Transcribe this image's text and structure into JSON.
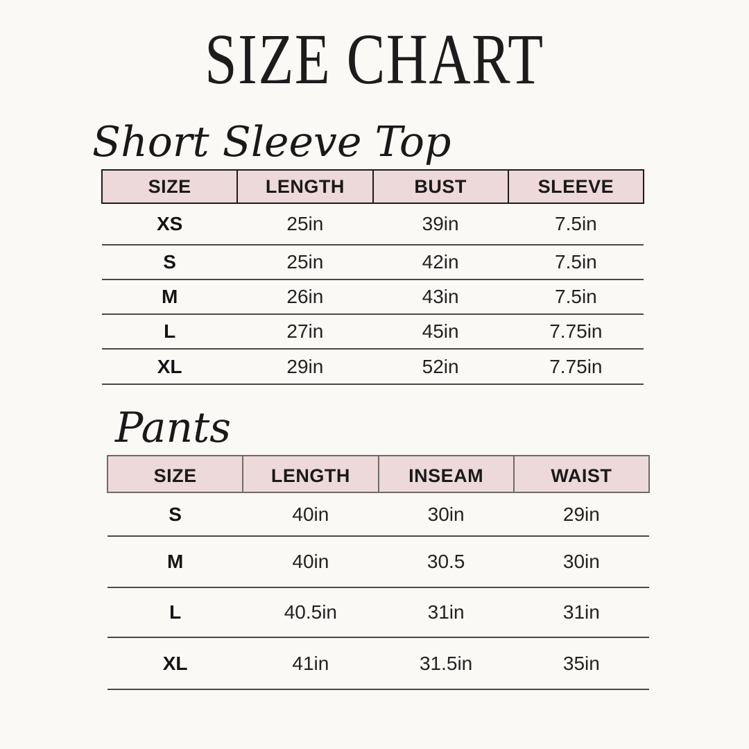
{
  "page": {
    "title": "SIZE CHART"
  },
  "colors": {
    "page_bg": "#faf9f6",
    "header_bg": "#edd9d9",
    "table1_border": "#1d1b1b",
    "table2_border": "#6e6a66",
    "row_line": "#4c4945",
    "text": "#1d1b1b"
  },
  "chart_data": [
    {
      "type": "table",
      "title": "Short Sleeve Top",
      "columns": [
        "SIZE",
        "LENGTH",
        "BUST",
        "SLEEVE"
      ],
      "rows": [
        [
          "XS",
          "25in",
          "39in",
          "7.5in"
        ],
        [
          "S",
          "25in",
          "42in",
          "7.5in"
        ],
        [
          "M",
          "26in",
          "43in",
          "7.5in"
        ],
        [
          "L",
          "27in",
          "45in",
          "7.75in"
        ],
        [
          "XL",
          "29in",
          "52in",
          "7.75in"
        ]
      ]
    },
    {
      "type": "table",
      "title": "Pants",
      "columns": [
        "SIZE",
        "LENGTH",
        "INSEAM",
        "WAIST"
      ],
      "rows": [
        [
          "S",
          "40in",
          "30in",
          "29in"
        ],
        [
          "M",
          "40in",
          "30.5",
          "30in"
        ],
        [
          "L",
          "40.5in",
          "31in",
          "31in"
        ],
        [
          "XL",
          "41in",
          "31.5in",
          "35in"
        ]
      ]
    }
  ]
}
